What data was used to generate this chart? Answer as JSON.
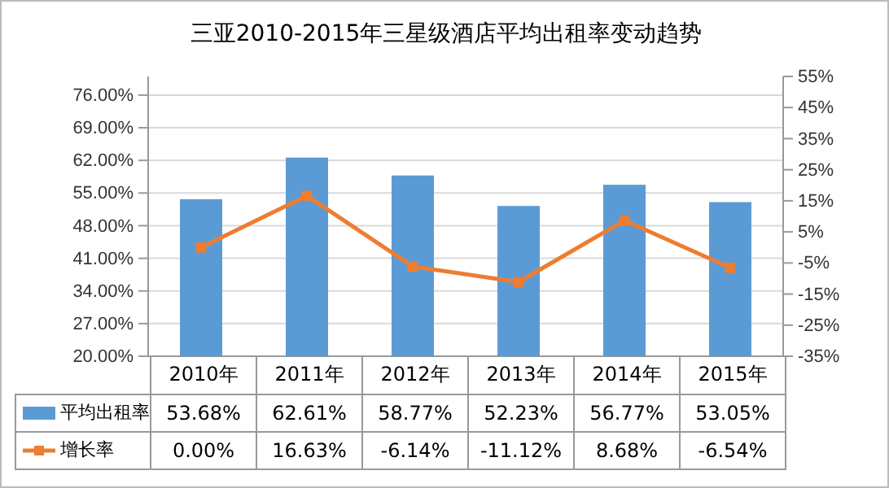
{
  "chart_data": {
    "type": "bar",
    "title": "三亚2010-2015年三星级酒店平均出租率变动趋势",
    "categories": [
      "2010年",
      "2011年",
      "2012年",
      "2013年",
      "2014年",
      "2015年"
    ],
    "series": [
      {
        "name": "平均出租率",
        "color": "#5b9bd5",
        "values": [
          53.68,
          62.61,
          58.77,
          52.23,
          56.77,
          53.05
        ],
        "value_labels": [
          "53.68%",
          "62.61%",
          "58.77%",
          "52.23%",
          "56.77%",
          "53.05%"
        ]
      },
      {
        "name": "增长率",
        "type": "line",
        "axis": "y2",
        "color": "#ed7d31",
        "marker": "square",
        "values": [
          0.0,
          16.63,
          -6.14,
          -11.12,
          8.68,
          -6.54
        ],
        "value_labels": [
          "0.00%",
          "16.63%",
          "-6.14%",
          "-11.12%",
          "8.68%",
          "-6.54%"
        ]
      }
    ],
    "ylim": [
      20,
      80
    ],
    "yticks": [
      {
        "value": 20,
        "label": "20.00%"
      },
      {
        "value": 27,
        "label": "27.00%"
      },
      {
        "value": 34,
        "label": "34.00%"
      },
      {
        "value": 41,
        "label": "41.00%"
      },
      {
        "value": 48,
        "label": "48.00%"
      },
      {
        "value": 55,
        "label": "55.00%"
      },
      {
        "value": 62,
        "label": "62.00%"
      },
      {
        "value": 69,
        "label": "69.00%"
      },
      {
        "value": 76,
        "label": "76.00%"
      }
    ],
    "y2lim": [
      -35,
      55
    ],
    "y2ticks": [
      {
        "value": -35,
        "label": "-35%"
      },
      {
        "value": -25,
        "label": "-25%"
      },
      {
        "value": -15,
        "label": "-15%"
      },
      {
        "value": -5,
        "label": "-5%"
      },
      {
        "value": 5,
        "label": "5%"
      },
      {
        "value": 15,
        "label": "15%"
      },
      {
        "value": 25,
        "label": "25%"
      },
      {
        "value": 35,
        "label": "35%"
      },
      {
        "value": 45,
        "label": "45%"
      },
      {
        "value": 55,
        "label": "55%"
      }
    ],
    "grid": "y",
    "legend": "bottom"
  }
}
